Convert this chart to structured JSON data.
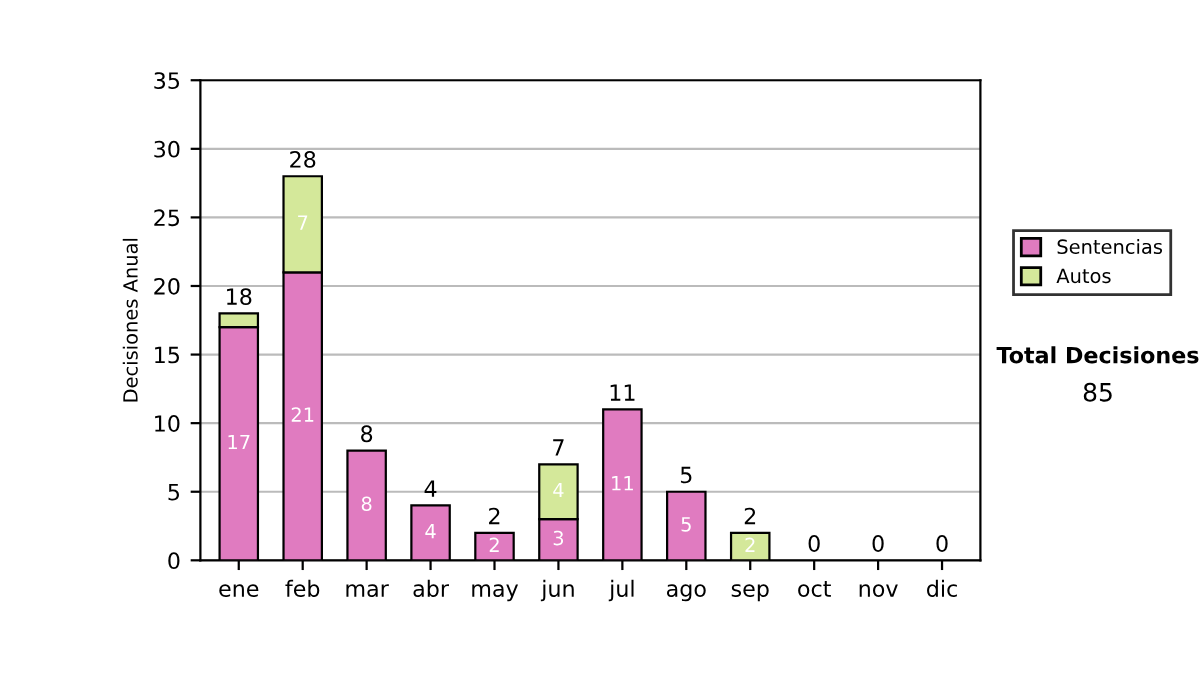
{
  "chart_data": {
    "type": "bar",
    "stacked": true,
    "ylabel": "Decisiones Anual",
    "categories": [
      "ene",
      "feb",
      "mar",
      "abr",
      "may",
      "jun",
      "jul",
      "ago",
      "sep",
      "oct",
      "nov",
      "dic"
    ],
    "series": [
      {
        "name": "Sentencias",
        "color": "#e07bc0",
        "values": [
          17,
          21,
          8,
          4,
          2,
          3,
          11,
          5,
          0,
          0,
          0,
          0
        ],
        "value_labels": [
          "17",
          "21",
          "8",
          "4",
          "2",
          "3",
          "11",
          "5",
          null,
          null,
          null,
          null
        ]
      },
      {
        "name": "Autos",
        "color": "#d4e89a",
        "values": [
          1,
          7,
          0,
          0,
          0,
          4,
          0,
          0,
          2,
          0,
          0,
          0
        ],
        "value_labels": [
          null,
          "7",
          null,
          null,
          null,
          "4",
          null,
          null,
          "2",
          null,
          null,
          null
        ]
      }
    ],
    "totals": [
      "18",
      "28",
      "8",
      "4",
      "2",
      "7",
      "11",
      "5",
      "2",
      "0",
      "0",
      "0"
    ],
    "ylim": [
      0,
      35
    ],
    "yticks": [
      0,
      5,
      10,
      15,
      20,
      25,
      30,
      35
    ],
    "grid": "y",
    "legend": "right",
    "annotations": [
      "Total Decisiones",
      "85"
    ]
  }
}
